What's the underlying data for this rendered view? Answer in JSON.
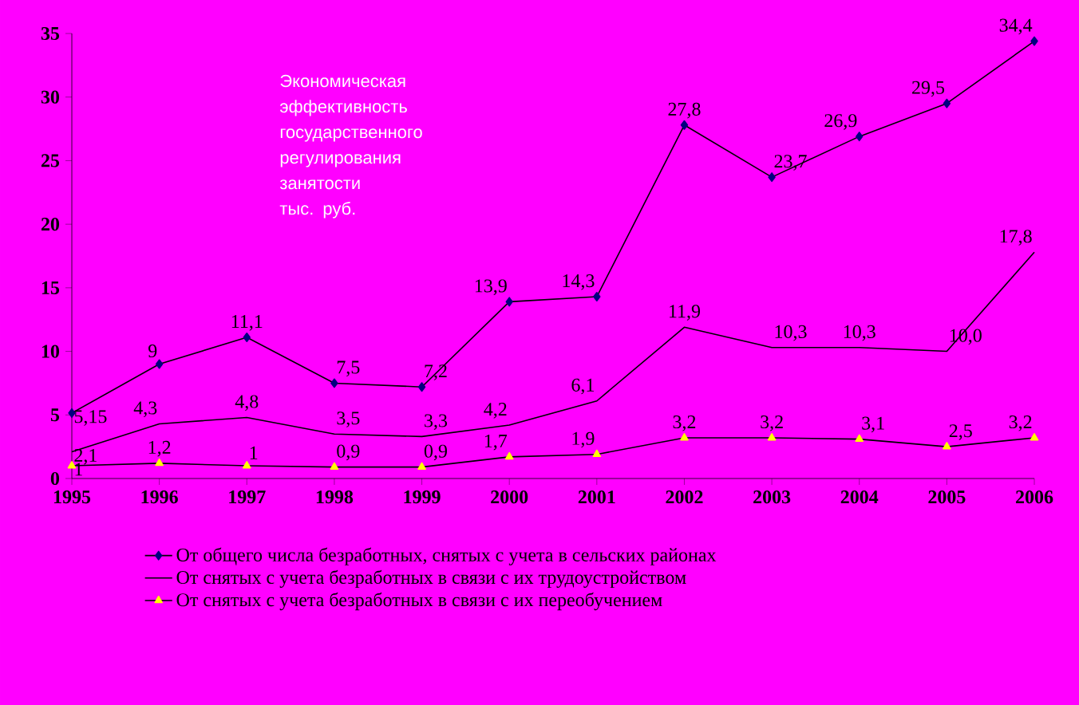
{
  "chart_data": {
    "type": "line",
    "title": "Экономическая эффективность государственного регулирования занятости",
    "ylabel": "тыс. руб.",
    "categories": [
      "1995",
      "1996",
      "1997",
      "1998",
      "1999",
      "2000",
      "2001",
      "2002",
      "2003",
      "2004",
      "2005",
      "2006"
    ],
    "series": [
      {
        "name": "От общего числа безработных, снятых с учета в сельских районах",
        "color": "#000080",
        "marker": "diamond",
        "values": [
          5.15,
          9,
          11.1,
          7.5,
          7.2,
          13.9,
          14.3,
          27.8,
          23.7,
          26.9,
          29.5,
          34.4
        ],
        "value_labels": [
          "5,15",
          "9",
          "11,1",
          "7,5",
          "7,2",
          "13,9",
          "14,3",
          "27,8",
          "23,7",
          "26,9",
          "29,5",
          "34,4"
        ]
      },
      {
        "name": "От снятых с учета безработных в связи с их трудоустройством",
        "color": "#000000",
        "marker": "none",
        "values": [
          2.1,
          4.3,
          4.8,
          3.5,
          3.3,
          4.2,
          6.1,
          11.9,
          10.3,
          10.3,
          10.0,
          17.8
        ],
        "value_labels": [
          "2,1",
          "4,3",
          "4,8",
          "3,5",
          "3,3",
          "4,2",
          "6,1",
          "11,9",
          "10,3",
          "10,3",
          "10,0",
          "17,8"
        ]
      },
      {
        "name": "От снятых с учета безработных в связи с их переобучением",
        "color": "#ffff00",
        "marker": "triangle",
        "values": [
          1,
          1.2,
          1,
          0.9,
          0.9,
          1.7,
          1.9,
          3.2,
          3.2,
          3.1,
          2.5,
          3.2
        ],
        "value_labels": [
          "1",
          "1,2",
          "1",
          "0,9",
          "0,9",
          "1,7",
          "1,9",
          "3,2",
          "3,2",
          "3,1",
          "2,5",
          "3,2"
        ]
      }
    ],
    "ylim": [
      0,
      35
    ],
    "yticks": [
      0,
      5,
      10,
      15,
      20,
      25,
      30,
      35
    ],
    "legend": "bottom"
  }
}
